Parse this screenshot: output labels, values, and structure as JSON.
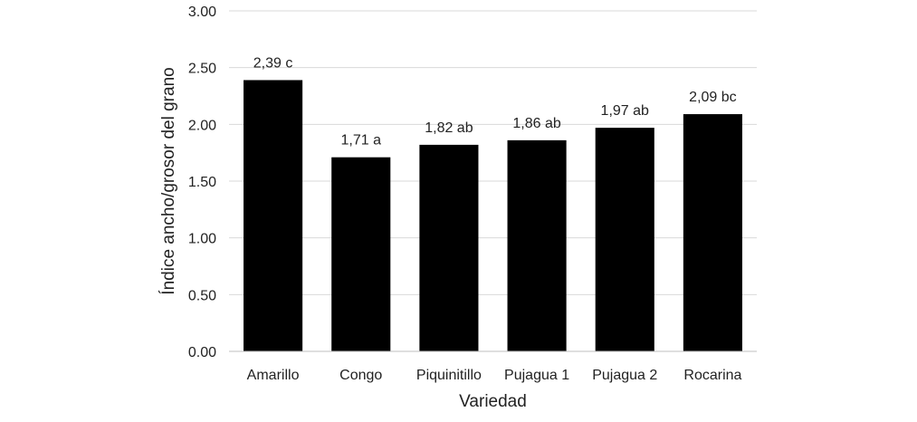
{
  "chart_data": {
    "type": "bar",
    "title": "",
    "xlabel": "Variedad",
    "ylabel": "Índice ancho/grosor del grano",
    "categories": [
      "Amarillo",
      "Congo",
      "Piquinitillo",
      "Pujagua 1",
      "Pujagua 2",
      "Rocarina"
    ],
    "values": [
      2.39,
      1.71,
      1.82,
      1.86,
      1.97,
      2.09
    ],
    "data_labels": [
      "2,39 c",
      "1,71 a",
      "1,82 ab",
      "1,86 ab",
      "1,97 ab",
      "2,09 bc"
    ],
    "y_ticks": [
      "0.00",
      "0.50",
      "1.00",
      "1.50",
      "2.00",
      "2.50",
      "3.00"
    ],
    "ylim": [
      0,
      3
    ],
    "grid": true,
    "legend": "none",
    "colors": {
      "bar": "#000000",
      "grid": "#d9d9d9",
      "axis": "#bfbfbf"
    }
  }
}
